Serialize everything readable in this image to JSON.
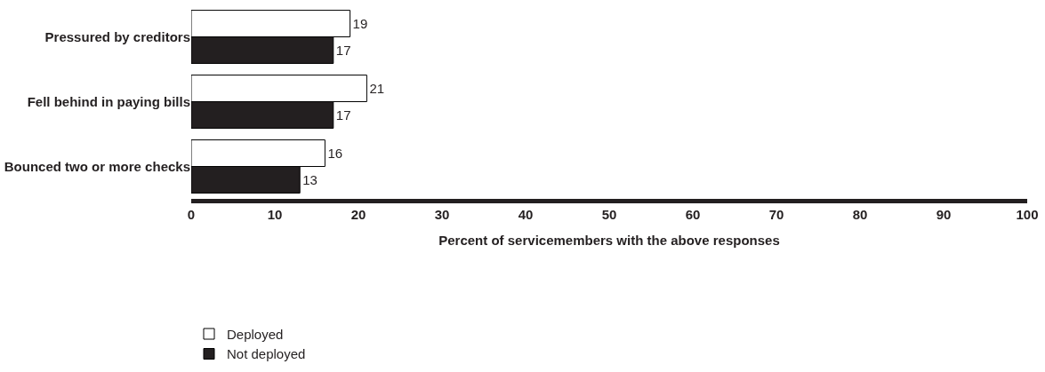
{
  "chart_data": {
    "type": "bar",
    "orientation": "horizontal",
    "categories": [
      "Pressured by creditors",
      "Fell behind in paying bills",
      "Bounced two or more checks"
    ],
    "series": [
      {
        "name": "Deployed",
        "color": "#ffffff",
        "values": [
          19,
          21,
          16
        ]
      },
      {
        "name": "Not deployed",
        "color": "#231f20",
        "values": [
          17,
          17,
          13
        ]
      }
    ],
    "xlabel": "Percent of servicemembers with the above responses",
    "xlim": [
      0,
      100
    ],
    "xticks": [
      0,
      10,
      20,
      30,
      40,
      50,
      60,
      70,
      80,
      90,
      100
    ],
    "data_labels": true,
    "legend": "bottom left"
  }
}
